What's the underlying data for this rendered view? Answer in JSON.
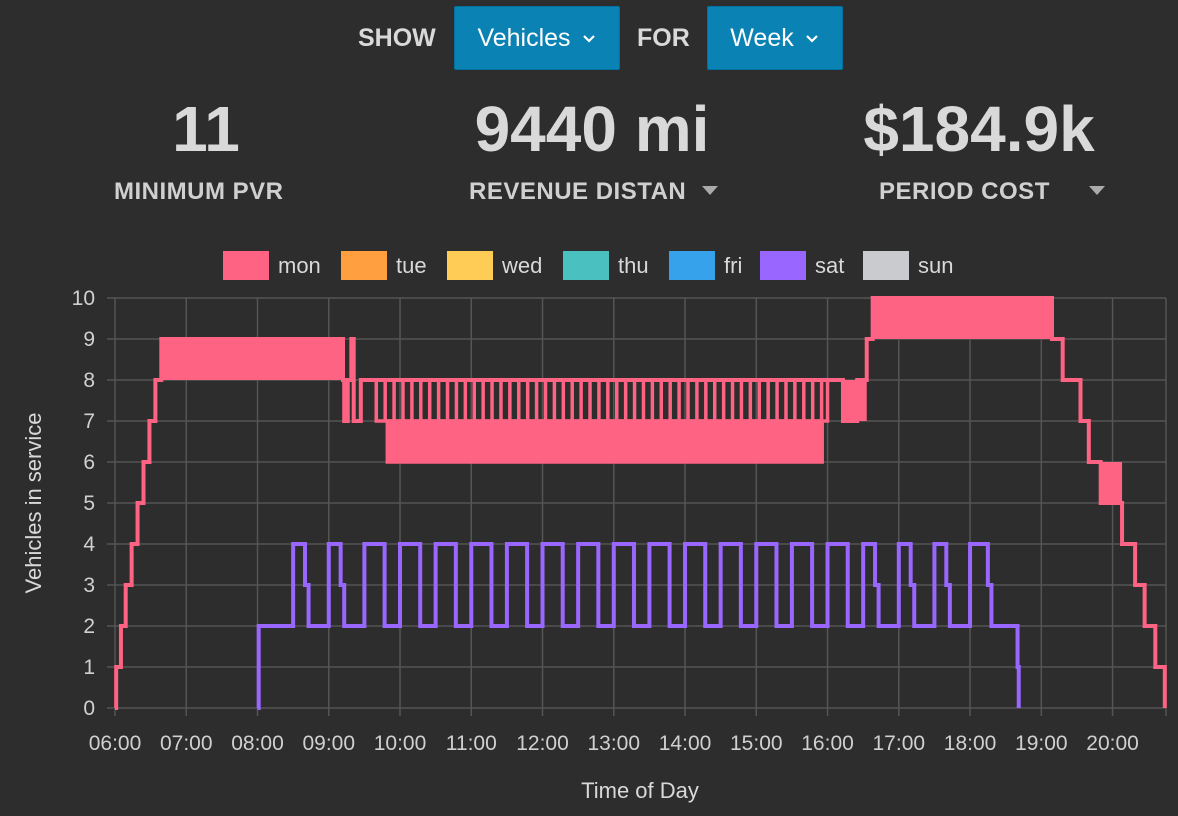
{
  "controls": {
    "show_label": "SHOW",
    "show_value": "Vehicles",
    "for_label": "FOR",
    "for_value": "Week"
  },
  "kpis": [
    {
      "value": "11",
      "label": "MINIMUM PVR"
    },
    {
      "value": "9440 mi",
      "label": "REVENUE DISTAN"
    },
    {
      "value": "$184.9k",
      "label": "PERIOD COST"
    }
  ],
  "colors": {
    "accent": "#0a82b4",
    "background": "#2d2d2d"
  },
  "chart_data": {
    "type": "line",
    "step": true,
    "xlabel": "Time of Day",
    "ylabel": "Vehicles in service",
    "xlim": [
      "06:00",
      "20:45"
    ],
    "ylim": [
      0,
      10
    ],
    "x_ticks": [
      "06:00",
      "07:00",
      "08:00",
      "09:00",
      "10:00",
      "11:00",
      "12:00",
      "13:00",
      "14:00",
      "15:00",
      "16:00",
      "17:00",
      "18:00",
      "19:00",
      "20:00"
    ],
    "y_ticks": [
      0,
      1,
      2,
      3,
      4,
      5,
      6,
      7,
      8,
      9,
      10
    ],
    "grid": true,
    "legend_position": "top",
    "series": [
      {
        "name": "mon",
        "color": "#ff6384",
        "bands": [
          {
            "from": "09:40",
            "to": "16:00",
            "low": 7,
            "high": 8
          },
          {
            "from": "09:48",
            "to": "15:58",
            "low": 6,
            "high": 7,
            "step_minutes": 7.5
          }
        ],
        "points": [
          {
            "t": "06:00",
            "v": 0
          },
          {
            "t": "06:01",
            "v": 1
          },
          {
            "t": "06:05",
            "v": 2
          },
          {
            "t": "06:09",
            "v": 3
          },
          {
            "t": "06:14",
            "v": 4
          },
          {
            "t": "06:19",
            "v": 5
          },
          {
            "t": "06:24",
            "v": 6
          },
          {
            "t": "06:29",
            "v": 7
          },
          {
            "t": "06:34",
            "v": 8
          },
          {
            "t": "06:39",
            "v": 9
          },
          {
            "t": "09:12",
            "v": 8
          },
          {
            "t": "09:13",
            "v": 7
          },
          {
            "t": "09:16",
            "v": 8
          },
          {
            "t": "09:19",
            "v": 9
          },
          {
            "t": "09:21",
            "v": 7
          },
          {
            "t": "09:27",
            "v": 8
          },
          {
            "t": "16:13",
            "v": 7
          },
          {
            "t": "16:25",
            "v": 8
          },
          {
            "t": "16:33",
            "v": 9
          },
          {
            "t": "16:38",
            "v": 10
          },
          {
            "t": "19:09",
            "v": 9
          },
          {
            "t": "19:18",
            "v": 8
          },
          {
            "t": "19:33",
            "v": 7
          },
          {
            "t": "19:40",
            "v": 6
          },
          {
            "t": "19:50",
            "v": 5
          },
          {
            "t": "20:08",
            "v": 4
          },
          {
            "t": "20:19",
            "v": 3
          },
          {
            "t": "20:27",
            "v": 2
          },
          {
            "t": "20:36",
            "v": 1
          },
          {
            "t": "20:44",
            "v": 0
          }
        ]
      },
      {
        "name": "tue",
        "color": "#ff9f40",
        "points": []
      },
      {
        "name": "wed",
        "color": "#ffcd56",
        "points": []
      },
      {
        "name": "thu",
        "color": "#4bc0c0",
        "points": []
      },
      {
        "name": "fri",
        "color": "#36a2eb",
        "points": []
      },
      {
        "name": "sat",
        "color": "#9966ff",
        "points": [
          {
            "t": "08:00",
            "v": 0
          },
          {
            "t": "08:01",
            "v": 2
          },
          {
            "t": "08:30",
            "v": 4
          },
          {
            "t": "08:40",
            "v": 3
          },
          {
            "t": "08:43",
            "v": 2
          },
          {
            "t": "09:00",
            "v": 4
          },
          {
            "t": "09:10",
            "v": 3
          },
          {
            "t": "09:13",
            "v": 2
          },
          {
            "t": "09:30",
            "v": 4
          },
          {
            "t": "09:47",
            "v": 2
          },
          {
            "t": "10:00",
            "v": 4
          },
          {
            "t": "10:17",
            "v": 2
          },
          {
            "t": "10:30",
            "v": 4
          },
          {
            "t": "10:47",
            "v": 2
          },
          {
            "t": "11:00",
            "v": 4
          },
          {
            "t": "11:17",
            "v": 2
          },
          {
            "t": "11:30",
            "v": 4
          },
          {
            "t": "11:47",
            "v": 2
          },
          {
            "t": "12:00",
            "v": 4
          },
          {
            "t": "12:17",
            "v": 2
          },
          {
            "t": "12:30",
            "v": 4
          },
          {
            "t": "12:47",
            "v": 2
          },
          {
            "t": "13:00",
            "v": 4
          },
          {
            "t": "13:17",
            "v": 2
          },
          {
            "t": "13:30",
            "v": 4
          },
          {
            "t": "13:47",
            "v": 2
          },
          {
            "t": "14:00",
            "v": 4
          },
          {
            "t": "14:17",
            "v": 2
          },
          {
            "t": "14:30",
            "v": 4
          },
          {
            "t": "14:47",
            "v": 2
          },
          {
            "t": "15:00",
            "v": 4
          },
          {
            "t": "15:17",
            "v": 2
          },
          {
            "t": "15:30",
            "v": 4
          },
          {
            "t": "15:47",
            "v": 2
          },
          {
            "t": "16:00",
            "v": 4
          },
          {
            "t": "16:17",
            "v": 2
          },
          {
            "t": "16:30",
            "v": 4
          },
          {
            "t": "16:40",
            "v": 3
          },
          {
            "t": "16:43",
            "v": 2
          },
          {
            "t": "17:00",
            "v": 4
          },
          {
            "t": "17:10",
            "v": 3
          },
          {
            "t": "17:13",
            "v": 2
          },
          {
            "t": "17:30",
            "v": 4
          },
          {
            "t": "17:40",
            "v": 3
          },
          {
            "t": "17:43",
            "v": 2
          },
          {
            "t": "18:00",
            "v": 4
          },
          {
            "t": "18:15",
            "v": 3
          },
          {
            "t": "18:18",
            "v": 2
          },
          {
            "t": "18:40",
            "v": 1
          },
          {
            "t": "18:41",
            "v": 0
          }
        ]
      },
      {
        "name": "sun",
        "color": "#c9cbcf",
        "points": []
      }
    ]
  }
}
